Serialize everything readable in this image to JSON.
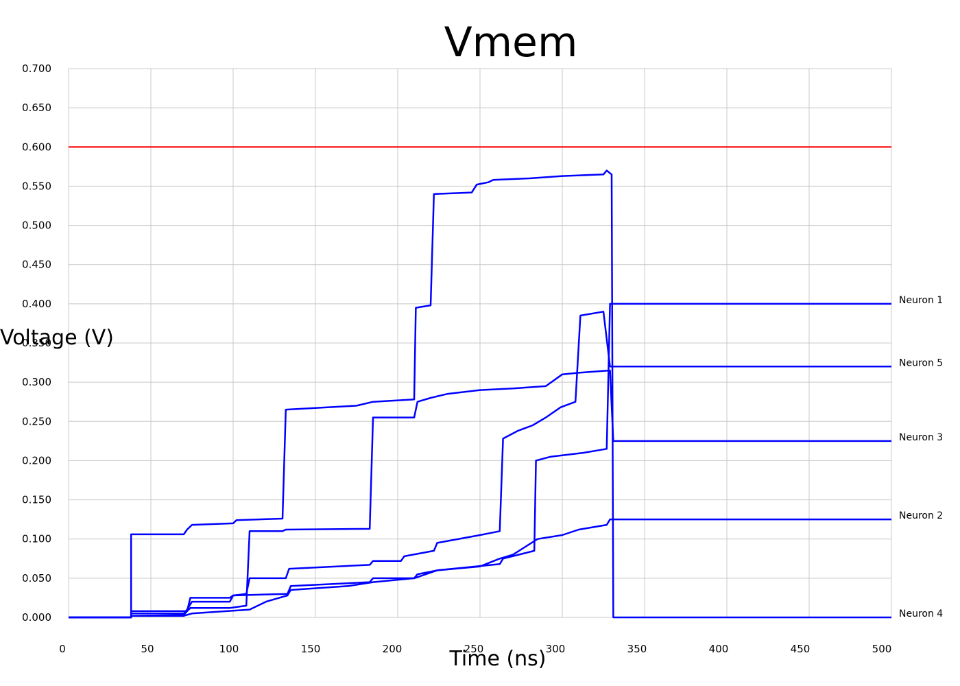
{
  "chart_data": {
    "type": "line",
    "title": "Vmem",
    "xlabel": "Time (ns)",
    "ylabel": "Voltage (V)",
    "xlim": [
      0,
      500
    ],
    "ylim": [
      0,
      0.7
    ],
    "x_ticks": [
      "0",
      "50",
      "100",
      "150",
      "200",
      "250",
      "300",
      "350",
      "400",
      "450",
      "500"
    ],
    "y_ticks": [
      "0.000",
      "0.050",
      "0.100",
      "0.150",
      "0.200",
      "0.250",
      "0.300",
      "0.350",
      "0.400",
      "0.450",
      "0.500",
      "0.550",
      "0.600",
      "0.650",
      "0.700"
    ],
    "grid": true,
    "threshold": {
      "y": 0.6,
      "color": "#ff0000"
    },
    "series_color": "#0000ff",
    "series": [
      {
        "name": "Neuron 1",
        "points": [
          [
            0,
            0
          ],
          [
            38,
            0
          ],
          [
            38,
            0.005
          ],
          [
            70,
            0.005
          ],
          [
            72,
            0.01
          ],
          [
            75,
            0.02
          ],
          [
            98,
            0.02
          ],
          [
            100,
            0.028
          ],
          [
            133,
            0.03
          ],
          [
            135,
            0.04
          ],
          [
            183,
            0.045
          ],
          [
            185,
            0.05
          ],
          [
            210,
            0.05
          ],
          [
            212,
            0.055
          ],
          [
            224,
            0.06
          ],
          [
            262,
            0.068
          ],
          [
            264,
            0.075
          ],
          [
            283,
            0.085
          ],
          [
            284,
            0.2
          ],
          [
            293,
            0.205
          ],
          [
            313,
            0.21
          ],
          [
            327,
            0.215
          ],
          [
            329,
            0.4
          ],
          [
            500,
            0.4
          ]
        ]
      },
      {
        "name": "Neuron 5",
        "points": [
          [
            0,
            0
          ],
          [
            38,
            0
          ],
          [
            38,
            0.008
          ],
          [
            72,
            0.008
          ],
          [
            74,
            0.025
          ],
          [
            98,
            0.025
          ],
          [
            100,
            0.028
          ],
          [
            108,
            0.03
          ],
          [
            110,
            0.05
          ],
          [
            132,
            0.05
          ],
          [
            134,
            0.062
          ],
          [
            183,
            0.067
          ],
          [
            185,
            0.072
          ],
          [
            202,
            0.072
          ],
          [
            204,
            0.078
          ],
          [
            222,
            0.085
          ],
          [
            224,
            0.095
          ],
          [
            250,
            0.105
          ],
          [
            262,
            0.11
          ],
          [
            264,
            0.228
          ],
          [
            273,
            0.238
          ],
          [
            282,
            0.245
          ],
          [
            290,
            0.255
          ],
          [
            299,
            0.268
          ],
          [
            308,
            0.275
          ],
          [
            311,
            0.385
          ],
          [
            325,
            0.39
          ],
          [
            329,
            0.32
          ],
          [
            500,
            0.32
          ]
        ]
      },
      {
        "name": "Neuron 3",
        "points": [
          [
            0,
            0
          ],
          [
            38,
            0
          ],
          [
            38,
            0.002
          ],
          [
            70,
            0.003
          ],
          [
            72,
            0.008
          ],
          [
            74,
            0.012
          ],
          [
            98,
            0.012
          ],
          [
            108,
            0.015
          ],
          [
            110,
            0.11
          ],
          [
            130,
            0.11
          ],
          [
            132,
            0.112
          ],
          [
            183,
            0.113
          ],
          [
            185,
            0.255
          ],
          [
            210,
            0.255
          ],
          [
            212,
            0.275
          ],
          [
            220,
            0.28
          ],
          [
            230,
            0.285
          ],
          [
            250,
            0.29
          ],
          [
            270,
            0.292
          ],
          [
            290,
            0.295
          ],
          [
            300,
            0.31
          ],
          [
            310,
            0.312
          ],
          [
            329,
            0.315
          ],
          [
            331,
            0.225
          ],
          [
            500,
            0.225
          ]
        ]
      },
      {
        "name": "Neuron 2",
        "points": [
          [
            0,
            0
          ],
          [
            38,
            0
          ],
          [
            38,
            0.002
          ],
          [
            70,
            0.002
          ],
          [
            75,
            0.005
          ],
          [
            110,
            0.01
          ],
          [
            120,
            0.02
          ],
          [
            133,
            0.028
          ],
          [
            135,
            0.035
          ],
          [
            170,
            0.04
          ],
          [
            185,
            0.045
          ],
          [
            210,
            0.05
          ],
          [
            224,
            0.06
          ],
          [
            250,
            0.065
          ],
          [
            262,
            0.075
          ],
          [
            270,
            0.08
          ],
          [
            285,
            0.1
          ],
          [
            300,
            0.105
          ],
          [
            310,
            0.112
          ],
          [
            327,
            0.118
          ],
          [
            329,
            0.125
          ],
          [
            500,
            0.125
          ]
        ]
      },
      {
        "name": "Neuron 4",
        "points": [
          [
            0,
            0
          ],
          [
            38,
            0
          ],
          [
            38,
            0.106
          ],
          [
            70,
            0.106
          ],
          [
            72,
            0.112
          ],
          [
            75,
            0.118
          ],
          [
            100,
            0.12
          ],
          [
            102,
            0.124
          ],
          [
            130,
            0.126
          ],
          [
            132,
            0.265
          ],
          [
            175,
            0.27
          ],
          [
            185,
            0.275
          ],
          [
            210,
            0.278
          ],
          [
            211,
            0.395
          ],
          [
            220,
            0.398
          ],
          [
            222,
            0.54
          ],
          [
            245,
            0.542
          ],
          [
            248,
            0.552
          ],
          [
            255,
            0.555
          ],
          [
            258,
            0.558
          ],
          [
            280,
            0.56
          ],
          [
            300,
            0.563
          ],
          [
            325,
            0.565
          ],
          [
            327,
            0.57
          ],
          [
            330,
            0.565
          ],
          [
            331,
            0
          ],
          [
            500,
            0
          ]
        ]
      }
    ]
  }
}
